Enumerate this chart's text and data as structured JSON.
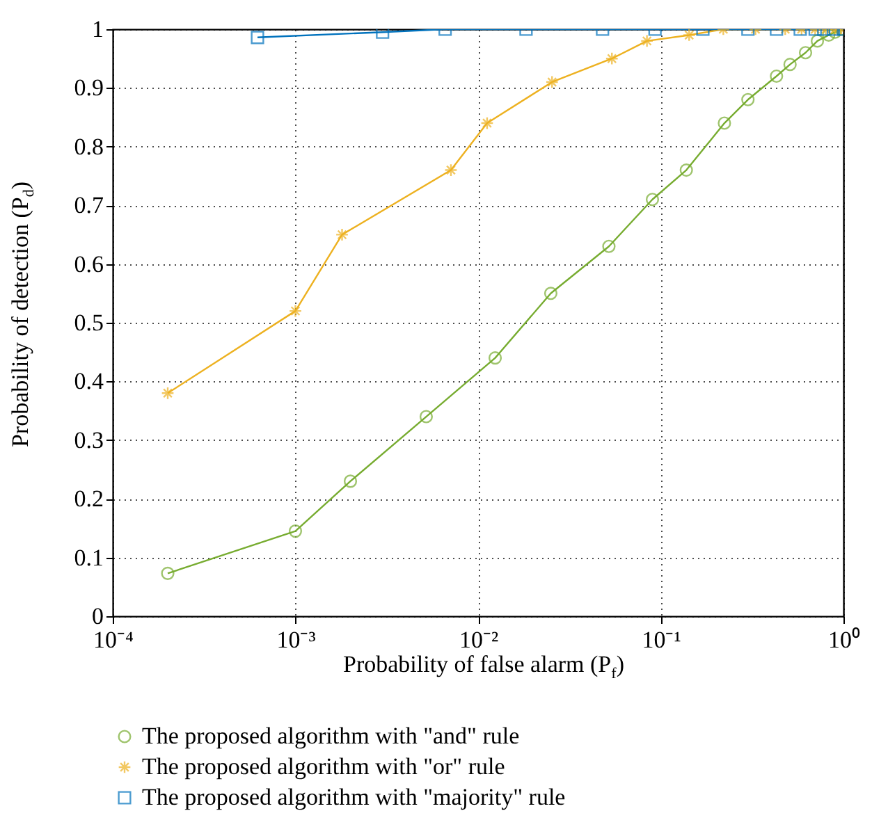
{
  "chart_data": {
    "type": "line",
    "xlabel": "Probability of false alarm (P$_{f}$)",
    "ylabel": "Probability of detection (P$_{d}$)",
    "log": "x",
    "grid": true,
    "legend": "bottom",
    "line_style": "solid",
    "xlim": [
      0.0001,
      1
    ],
    "xticks": [
      {
        "value": 0.0001,
        "label": "10⁻⁴"
      },
      {
        "value": 0.001,
        "label": "10⁻³"
      },
      {
        "value": 0.01,
        "label": "10⁻²"
      },
      {
        "value": 0.1,
        "label": "10⁻¹"
      },
      {
        "value": 1,
        "label": "10⁰"
      }
    ],
    "ylim": [
      0,
      1
    ],
    "yticks": [
      0,
      0.1,
      0.2,
      0.3,
      0.4,
      0.5,
      0.6,
      0.7,
      0.8,
      0.9,
      1
    ],
    "series": [
      {
        "name": "The proposed algorithm with \"and\" rule",
        "color": "#77ac30",
        "marker": "circle",
        "x": [
          0.0002,
          0.001,
          0.002,
          0.0052,
          0.0124,
          0.025,
          0.052,
          0.09,
          0.138,
          0.223,
          0.3,
          0.43,
          0.51,
          0.62,
          0.72,
          0.83,
          0.9,
          0.97
        ],
        "values": [
          0.073,
          0.145,
          0.23,
          0.34,
          0.44,
          0.55,
          0.63,
          0.71,
          0.76,
          0.84,
          0.88,
          0.92,
          0.94,
          0.96,
          0.98,
          0.99,
          0.995,
          1
        ]
      },
      {
        "name": "The proposed algorithm with \"or\" rule",
        "color": "#edb120",
        "marker": "cross",
        "x": [
          0.0002,
          0.001,
          0.0018,
          0.0071,
          0.0112,
          0.0254,
          0.054,
          0.084,
          0.143,
          0.22,
          0.33,
          0.48,
          0.59,
          0.7,
          0.8,
          0.9,
          0.97
        ],
        "values": [
          0.38,
          0.52,
          0.65,
          0.76,
          0.84,
          0.91,
          0.95,
          0.98,
          0.99,
          1,
          1,
          1,
          1,
          1,
          1,
          1,
          1
        ]
      },
      {
        "name": "The proposed algorithm with \"majority\" rule",
        "color": "#0072bd",
        "marker": "square",
        "x": [
          0.00062,
          0.003,
          0.0066,
          0.0183,
          0.048,
          0.093,
          0.17,
          0.3,
          0.43,
          0.58,
          0.7,
          0.78,
          0.88,
          1
        ],
        "values": [
          0.986,
          0.995,
          1,
          1,
          1,
          1,
          1,
          1,
          1,
          1,
          1,
          1,
          1,
          1
        ]
      }
    ]
  }
}
